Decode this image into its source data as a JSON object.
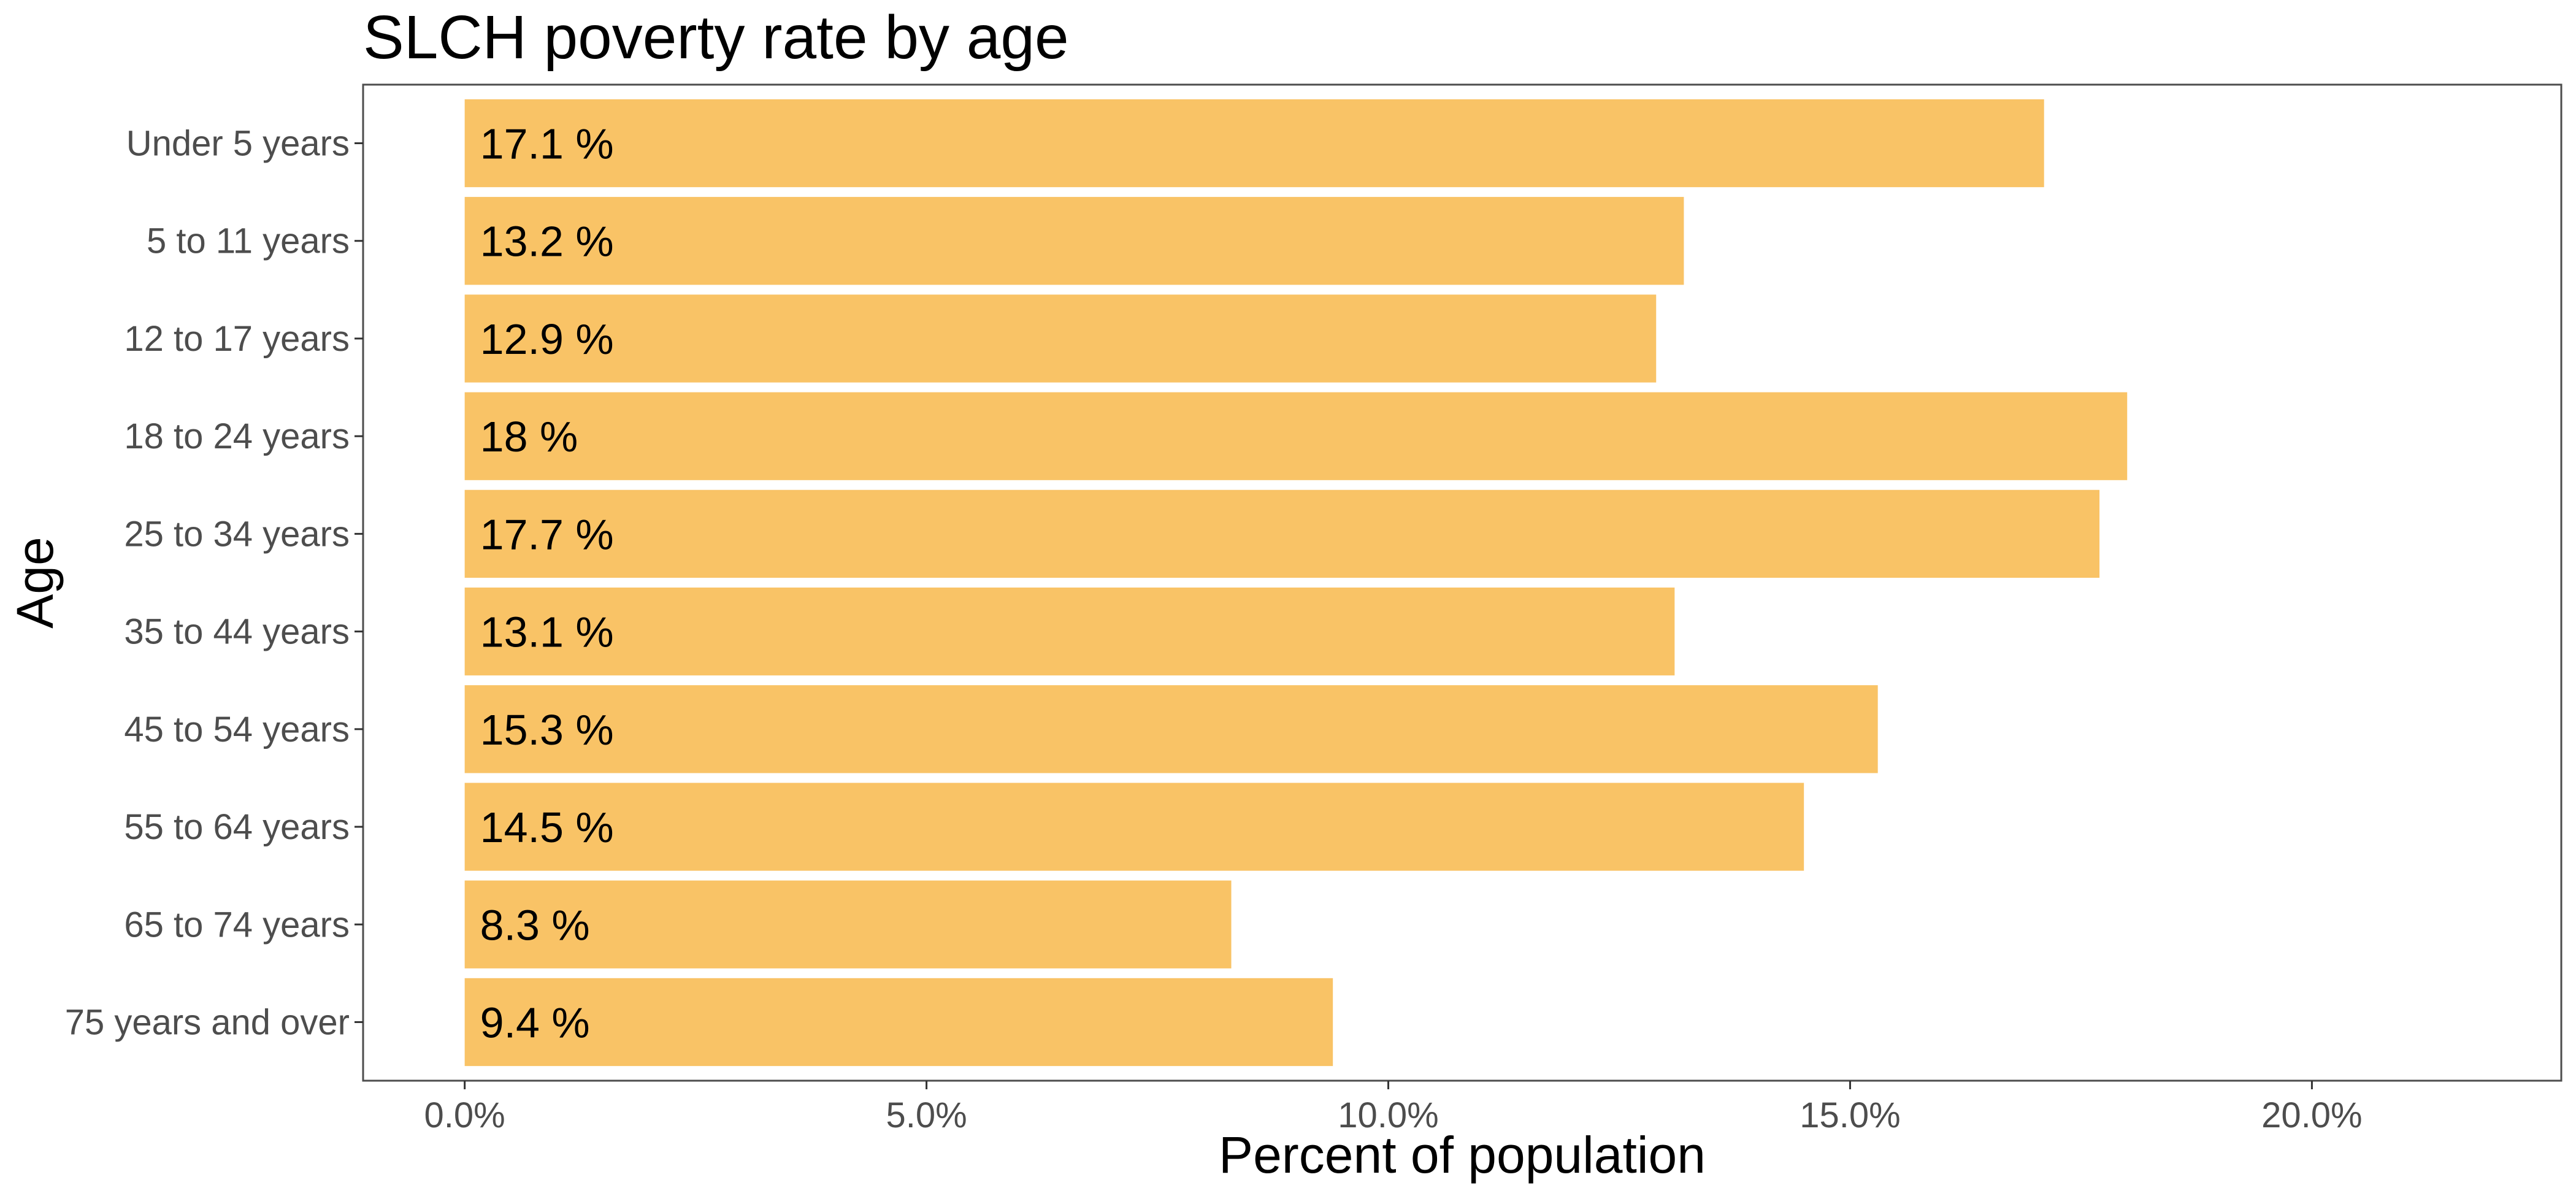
{
  "chart_data": {
    "type": "bar",
    "orientation": "horizontal",
    "title": "SLCH poverty rate by age",
    "xlabel": "Percent of population",
    "ylabel": "Age",
    "categories": [
      "Under 5 years",
      "5 to 11 years",
      "12 to 17 years",
      "18 to 24 years",
      "25 to 34 years",
      "35 to 44 years",
      "45 to 54 years",
      "55 to 64 years",
      "65 to 74 years",
      "75 years and over"
    ],
    "values": [
      17.1,
      13.2,
      12.9,
      18.0,
      17.7,
      13.1,
      15.3,
      14.5,
      8.3,
      9.4
    ],
    "data_labels": [
      "17.1 %",
      "13.2 %",
      "12.9 %",
      "18 %",
      "17.7 %",
      "13.1 %",
      "15.3 %",
      "14.5 %",
      "8.3 %",
      "9.4 %"
    ],
    "xticks": [
      0,
      5,
      10,
      15,
      20
    ],
    "xtick_labels": [
      "0.0%",
      "5.0%",
      "10.0%",
      "15.0%",
      "20.0%"
    ],
    "xlim": [
      -1.1,
      22.7
    ],
    "grid": false,
    "legend": "none",
    "bar_color": "#f9c366"
  }
}
